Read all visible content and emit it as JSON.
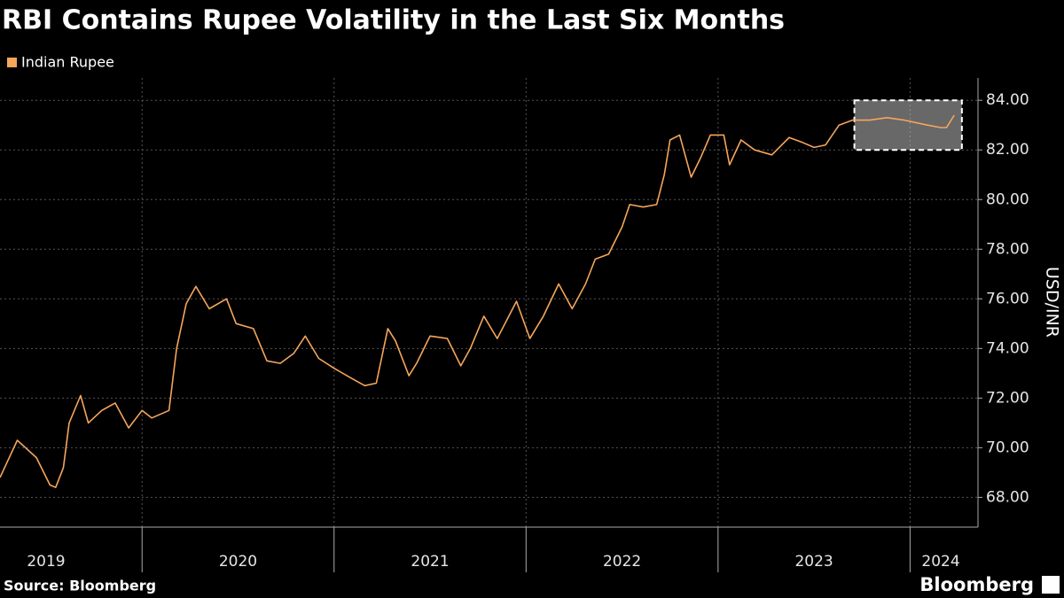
{
  "chart_data": {
    "type": "line",
    "title": "RBI Contains Rupee Volatility in the Last Six Months",
    "y_label": "USD/INR",
    "source": "Source: Bloomberg",
    "brand": "Bloomberg",
    "x": [
      2019.26,
      2019.35,
      2019.45,
      2019.52,
      2019.55,
      2019.59,
      2019.62,
      2019.68,
      2019.72,
      2019.79,
      2019.86,
      2019.93,
      2020.0,
      2020.05,
      2020.14,
      2020.18,
      2020.23,
      2020.28,
      2020.35,
      2020.44,
      2020.49,
      2020.58,
      2020.65,
      2020.72,
      2020.79,
      2020.85,
      2020.92,
      2021.0,
      2021.09,
      2021.16,
      2021.22,
      2021.28,
      2021.32,
      2021.39,
      2021.43,
      2021.5,
      2021.59,
      2021.66,
      2021.71,
      2021.78,
      2021.85,
      2021.95,
      2022.02,
      2022.09,
      2022.17,
      2022.24,
      2022.31,
      2022.36,
      2022.43,
      2022.5,
      2022.54,
      2022.61,
      2022.68,
      2022.72,
      2022.75,
      2022.8,
      2022.86,
      2022.91,
      2022.96,
      2023.03,
      2023.06,
      2023.12,
      2023.19,
      2023.28,
      2023.37,
      2023.44,
      2023.5,
      2023.56,
      2023.63,
      2023.7,
      2023.79,
      2023.88,
      2023.97,
      2024.09,
      2024.16,
      2024.19,
      2024.23
    ],
    "series": [
      {
        "name": "Indian Rupee",
        "color": "#f5a65b",
        "values": [
          68.8,
          70.3,
          69.6,
          68.5,
          68.4,
          69.2,
          71.0,
          72.1,
          71.0,
          71.5,
          71.8,
          70.8,
          71.5,
          71.2,
          71.5,
          74.0,
          75.8,
          76.5,
          75.6,
          76.0,
          75.0,
          74.8,
          73.5,
          73.4,
          73.8,
          74.5,
          73.6,
          73.2,
          72.8,
          72.5,
          72.6,
          74.8,
          74.3,
          72.9,
          73.4,
          74.5,
          74.4,
          73.3,
          74.0,
          75.3,
          74.4,
          75.9,
          74.4,
          75.3,
          76.6,
          75.6,
          76.6,
          77.6,
          77.8,
          78.9,
          79.8,
          79.7,
          79.8,
          81.0,
          82.4,
          82.6,
          80.9,
          81.7,
          82.6,
          82.6,
          81.4,
          82.4,
          82.0,
          81.8,
          82.5,
          82.3,
          82.1,
          82.2,
          83.0,
          83.2,
          83.2,
          83.3,
          83.2,
          83.0,
          82.9,
          82.9,
          83.4
        ]
      }
    ],
    "xlim": [
      2019.26,
      2024.34
    ],
    "xticks": [
      2020,
      2021,
      2022,
      2023,
      2024
    ],
    "xlabels": [
      {
        "value": 2019.5,
        "label": "2019"
      },
      {
        "value": 2020.5,
        "label": "2020"
      },
      {
        "value": 2021.5,
        "label": "2021"
      },
      {
        "value": 2022.5,
        "label": "2022"
      },
      {
        "value": 2023.5,
        "label": "2023"
      },
      {
        "value": 2024.16,
        "label": "2024"
      }
    ],
    "ylim": [
      66.8,
      84.9
    ],
    "yticks": [
      {
        "value": 68,
        "label": "68.00"
      },
      {
        "value": 70,
        "label": "70.00"
      },
      {
        "value": 72,
        "label": "72.00"
      },
      {
        "value": 74,
        "label": "74.00"
      },
      {
        "value": 76,
        "label": "76.00"
      },
      {
        "value": 78,
        "label": "78.00"
      },
      {
        "value": 80,
        "label": "80.00"
      },
      {
        "value": 82,
        "label": "82.00"
      },
      {
        "value": 84,
        "label": "84.00"
      }
    ],
    "grid": true,
    "highlight": {
      "xlim": [
        2023.71,
        2024.27
      ],
      "ylim": [
        82,
        84
      ]
    }
  }
}
